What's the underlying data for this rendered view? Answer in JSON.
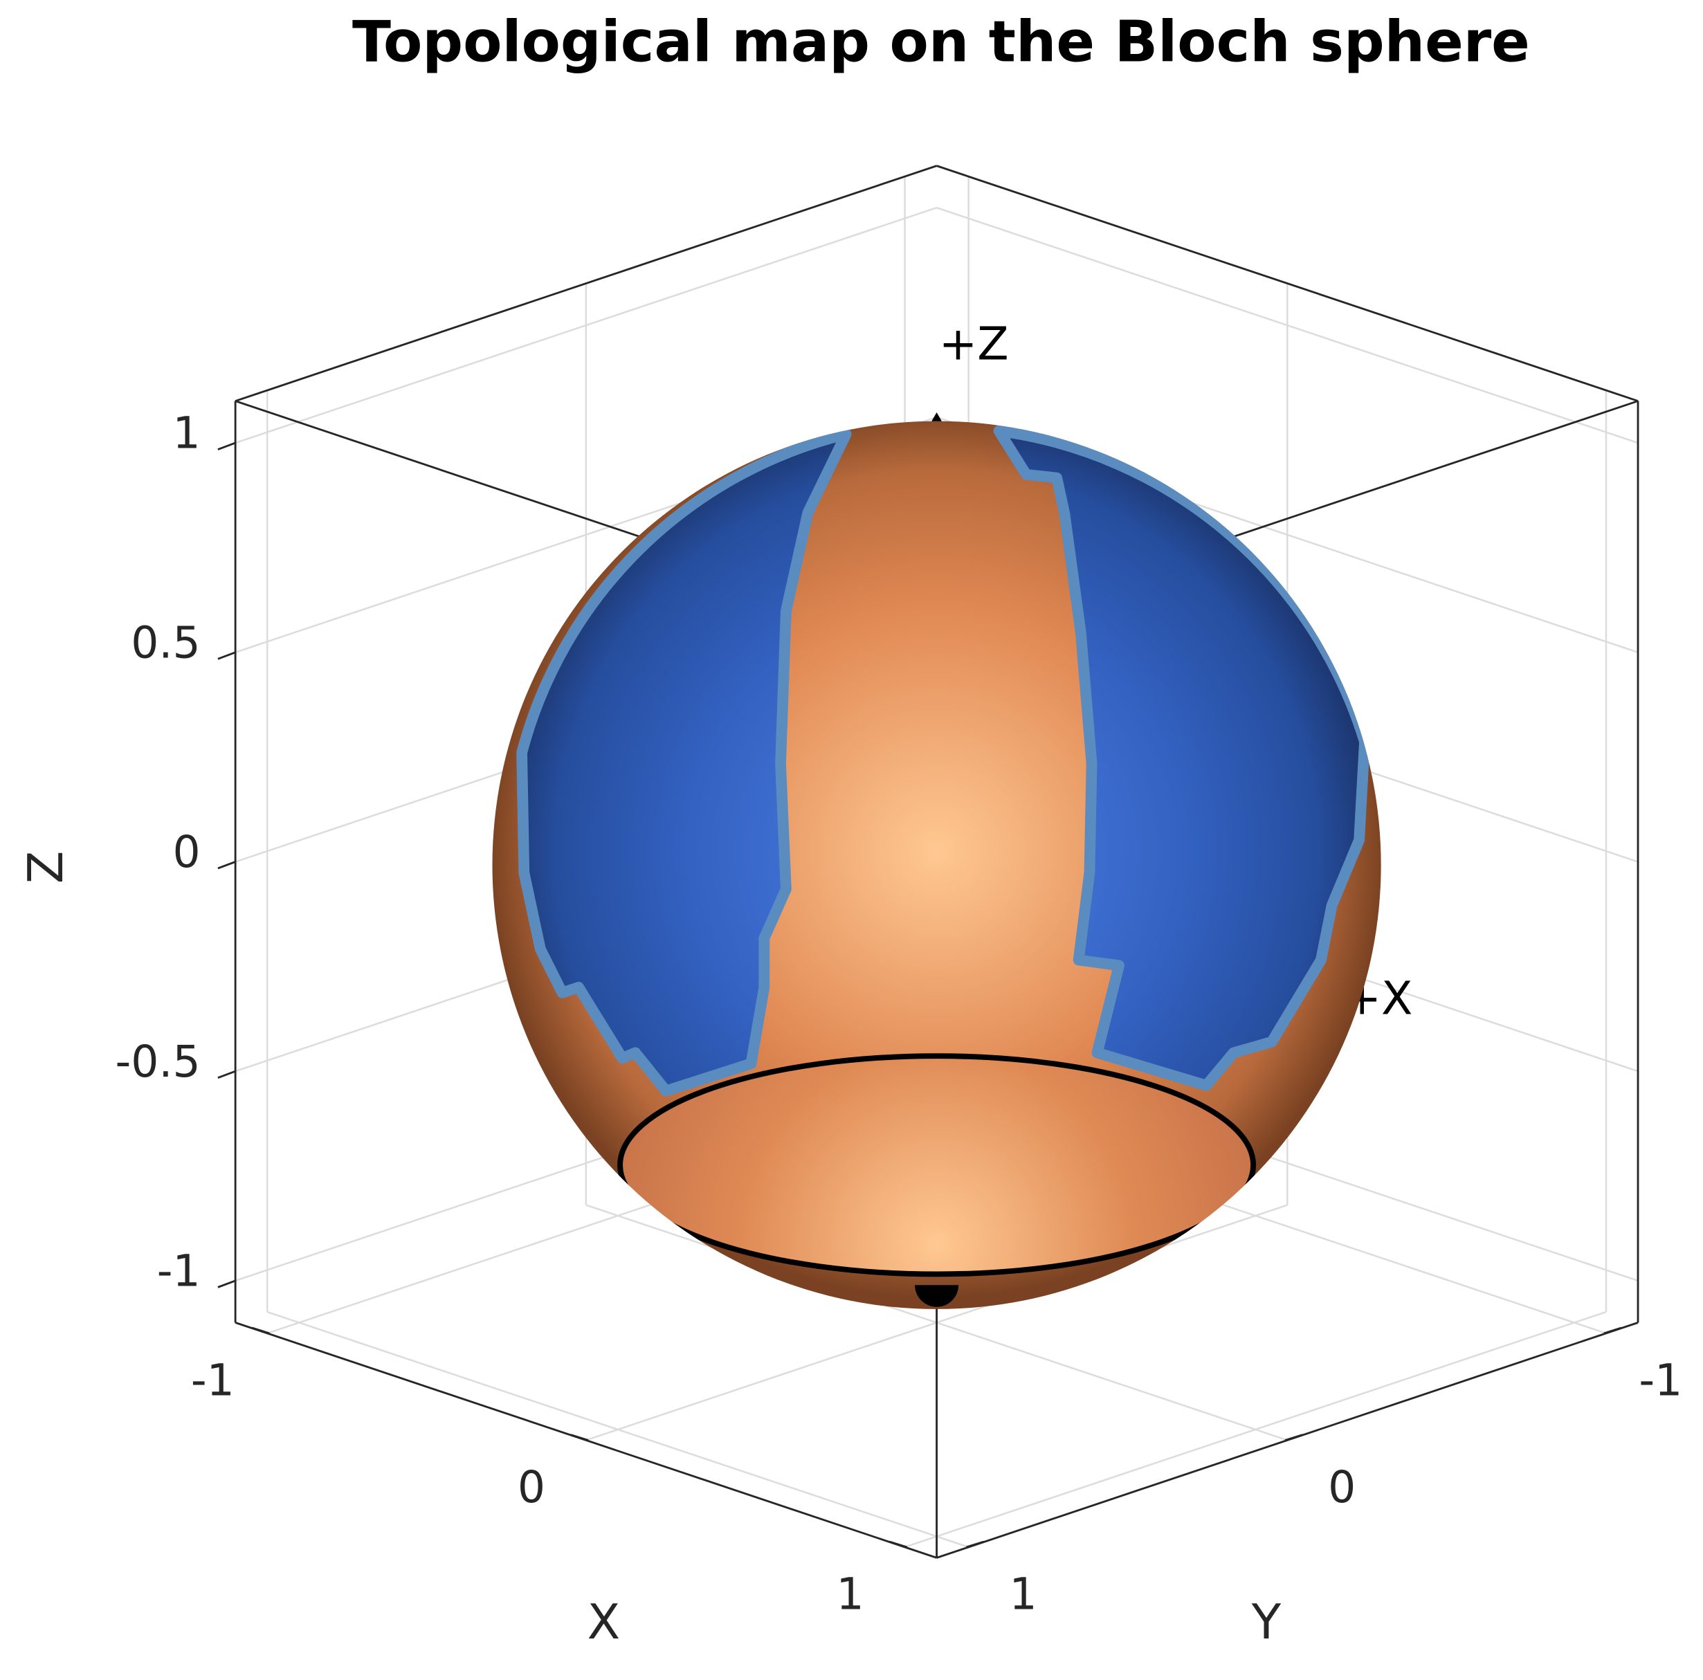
{
  "chart_data": {
    "type": "sphere3d",
    "title": "Topological map on the Bloch sphere",
    "xlabel": "X",
    "ylabel": "Y",
    "zlabel": "Z",
    "xlim": [
      -1.1,
      1.1
    ],
    "ylim": [
      -1.1,
      1.1
    ],
    "zlim": [
      -1.1,
      1.1
    ],
    "xticks": [
      -1,
      0,
      1
    ],
    "yticks": [
      -1,
      0,
      1
    ],
    "zticks": [
      -1,
      -0.5,
      0,
      0.5,
      1
    ],
    "grid": true,
    "annotations": [
      "+Z",
      "+X"
    ]
  }
}
